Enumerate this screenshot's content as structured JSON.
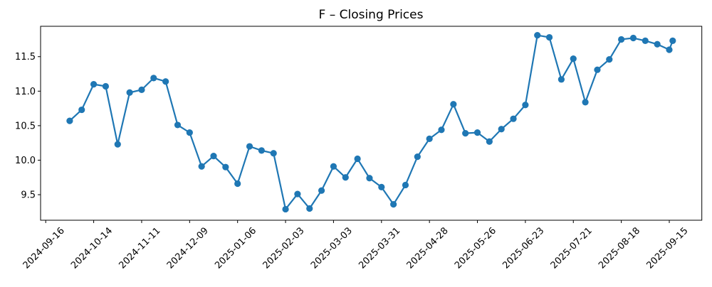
{
  "figure": {
    "background": "#ffffff"
  },
  "chart_data": {
    "type": "line",
    "title": "F – Closing Prices",
    "xlabel": "",
    "ylabel": "",
    "grid": false,
    "legend": null,
    "line_color": "#1f77b4",
    "marker_color": "#1f77b4",
    "axis_color": "#000000",
    "marker": "o",
    "ylim": [
      9.13,
      11.94
    ],
    "xlim": [
      "2024-09-13",
      "2025-10-04"
    ],
    "y_ticks": [
      9.5,
      10.0,
      10.5,
      11.0,
      11.5
    ],
    "x_tick_labels": [
      "2024-09-16",
      "2024-10-14",
      "2024-11-11",
      "2024-12-09",
      "2025-01-06",
      "2025-02-03",
      "2025-03-03",
      "2025-03-31",
      "2025-04-28",
      "2025-05-26",
      "2025-06-23",
      "2025-07-21",
      "2025-08-18",
      "2025-09-15"
    ],
    "x": [
      "2024-09-30",
      "2024-10-07",
      "2024-10-14",
      "2024-10-21",
      "2024-10-28",
      "2024-11-04",
      "2024-11-11",
      "2024-11-18",
      "2024-11-25",
      "2024-12-02",
      "2024-12-09",
      "2024-12-16",
      "2024-12-23",
      "2024-12-30",
      "2025-01-06",
      "2025-01-13",
      "2025-01-20",
      "2025-01-27",
      "2025-02-03",
      "2025-02-10",
      "2025-02-17",
      "2025-02-24",
      "2025-03-03",
      "2025-03-10",
      "2025-03-17",
      "2025-03-24",
      "2025-03-31",
      "2025-04-07",
      "2025-04-14",
      "2025-04-21",
      "2025-04-28",
      "2025-05-05",
      "2025-05-12",
      "2025-05-19",
      "2025-05-26",
      "2025-06-02",
      "2025-06-09",
      "2025-06-16",
      "2025-06-23",
      "2025-06-30",
      "2025-07-07",
      "2025-07-14",
      "2025-07-21",
      "2025-07-28",
      "2025-08-04",
      "2025-08-11",
      "2025-08-18",
      "2025-08-25",
      "2025-09-01",
      "2025-09-08",
      "2025-09-15",
      "2025-09-17"
    ],
    "values": [
      10.57,
      10.73,
      11.1,
      11.07,
      10.23,
      10.98,
      11.02,
      11.19,
      11.14,
      10.51,
      10.4,
      9.91,
      10.06,
      9.9,
      9.66,
      10.2,
      10.14,
      10.1,
      9.29,
      9.51,
      9.3,
      9.56,
      9.91,
      9.75,
      10.02,
      9.74,
      9.61,
      9.36,
      9.64,
      10.05,
      10.31,
      10.44,
      10.81,
      10.39,
      10.4,
      10.27,
      10.45,
      10.6,
      10.8,
      11.81,
      11.78,
      11.17,
      11.47,
      10.84,
      11.31,
      11.46,
      11.75,
      11.77,
      11.73,
      11.68,
      11.6,
      11.73
    ]
  }
}
